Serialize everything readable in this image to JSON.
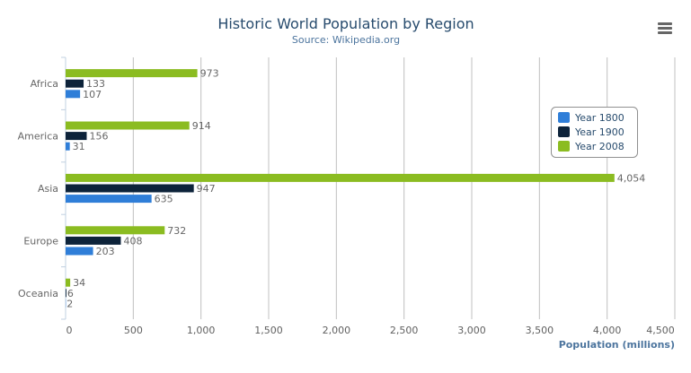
{
  "chart_data": {
    "type": "bar",
    "title": "Historic World Population by Region",
    "subtitle": "Source: Wikipedia.org",
    "categories": [
      "Africa",
      "America",
      "Asia",
      "Europe",
      "Oceania"
    ],
    "series": [
      {
        "name": "Year 1800",
        "color": "#2f7ed8",
        "values": [
          107,
          31,
          635,
          203,
          2
        ]
      },
      {
        "name": "Year 1900",
        "color": "#0d233a",
        "values": [
          133,
          156,
          947,
          408,
          6
        ]
      },
      {
        "name": "Year 2008",
        "color": "#8bbc21",
        "values": [
          973,
          914,
          4054,
          732,
          34
        ]
      }
    ],
    "xlabel": "",
    "ylabel": "Population (millions)",
    "ylim": [
      0,
      4500
    ],
    "ticks": [
      "0",
      "500",
      "1,000",
      "1,500",
      "2,000",
      "2,500",
      "3,000",
      "3,500",
      "4,000",
      "4,500"
    ],
    "grid": true,
    "legend": "right, floating",
    "data_labels": true
  },
  "menu_icon": "hamburger-menu-icon"
}
